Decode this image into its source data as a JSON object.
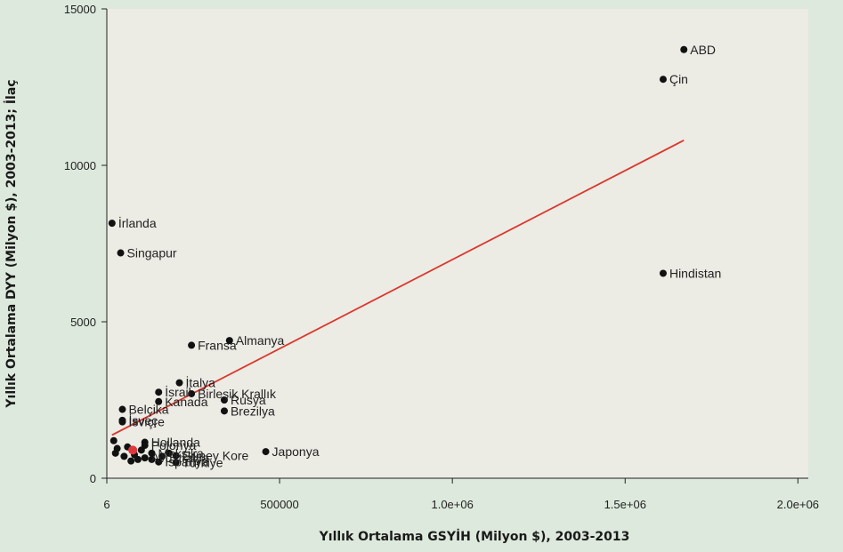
{
  "chart_data": {
    "type": "scatter",
    "xlabel": "Yıllık Ortalama GSYİH (Milyon $), 2003-2013",
    "ylabel": "Yıllık Ortalama DYY (Milyon $), 2003-2013; İlaç",
    "xlim": [
      6,
      2030000
    ],
    "ylim": [
      0,
      15000
    ],
    "x_ticks": [
      {
        "value": 6,
        "label": "6"
      },
      {
        "value": 500000,
        "label": "500000"
      },
      {
        "value": 1000000,
        "label": "1.0e+06"
      },
      {
        "value": 1500000,
        "label": "1.5e+06"
      },
      {
        "value": 2000000,
        "label": "2.0e+06"
      }
    ],
    "y_ticks": [
      {
        "value": 0,
        "label": "0"
      },
      {
        "value": 5000,
        "label": "5000"
      },
      {
        "value": 10000,
        "label": "10000"
      },
      {
        "value": 15000,
        "label": "15000"
      }
    ],
    "points": [
      {
        "label": "ABD",
        "x": 1670000,
        "y": 13700
      },
      {
        "label": "Çin",
        "x": 1610000,
        "y": 12750
      },
      {
        "label": "Hindistan",
        "x": 1610000,
        "y": 6550
      },
      {
        "label": "İrlanda",
        "x": 15000,
        "y": 8150
      },
      {
        "label": "Singapur",
        "x": 40000,
        "y": 7200
      },
      {
        "label": "Fransa",
        "x": 245000,
        "y": 4250
      },
      {
        "label": "Almanya",
        "x": 355000,
        "y": 4400
      },
      {
        "label": "İtalya",
        "x": 210000,
        "y": 3050
      },
      {
        "label": "İsrail",
        "x": 150000,
        "y": 2750
      },
      {
        "label": "Birleşik Krallık",
        "x": 245000,
        "y": 2700
      },
      {
        "label": "Kanada",
        "x": 150000,
        "y": 2450
      },
      {
        "label": "Rusya",
        "x": 340000,
        "y": 2500
      },
      {
        "label": "Brezilya",
        "x": 340000,
        "y": 2150
      },
      {
        "label": "Belçika",
        "x": 45000,
        "y": 2200
      },
      {
        "label": "İsveç",
        "x": 45000,
        "y": 1850
      },
      {
        "label": "İsviçre",
        "x": 45000,
        "y": 1800
      },
      {
        "label": "Hollanda",
        "x": 110000,
        "y": 1150
      },
      {
        "label": "Polonya",
        "x": 110000,
        "y": 1050
      },
      {
        "label": "Japonya",
        "x": 460000,
        "y": 850
      },
      {
        "label": "Meksika",
        "x": 130000,
        "y": 800
      },
      {
        "label": "Güney Kore",
        "x": 200000,
        "y": 720
      },
      {
        "label": "Avustralya",
        "x": 110000,
        "y": 650
      },
      {
        "label": "İspanya",
        "x": 150000,
        "y": 520
      },
      {
        "label": "Türkiye",
        "x": 200000,
        "y": 500
      },
      {
        "label": "",
        "x": 20000,
        "y": 1200
      },
      {
        "label": "",
        "x": 30000,
        "y": 950
      },
      {
        "label": "",
        "x": 25000,
        "y": 800
      },
      {
        "label": "",
        "x": 50000,
        "y": 700
      },
      {
        "label": "",
        "x": 60000,
        "y": 1000
      },
      {
        "label": "",
        "x": 80000,
        "y": 750
      },
      {
        "label": "",
        "x": 90000,
        "y": 600
      },
      {
        "label": "",
        "x": 70000,
        "y": 550
      },
      {
        "label": "",
        "x": 100000,
        "y": 900
      },
      {
        "label": "",
        "x": 130000,
        "y": 600
      },
      {
        "label": "",
        "x": 160000,
        "y": 700
      },
      {
        "label": "",
        "x": 180000,
        "y": 800
      }
    ],
    "highlight_point": {
      "x": 75000,
      "y": 900
    },
    "trend_line": {
      "x": [
        15000,
        1670000
      ],
      "y": [
        1380,
        10800
      ]
    },
    "grid": false,
    "colors": {
      "page_background": "#dde9dc",
      "plot_background": "#ecebe4",
      "points": "#111111",
      "trend_line": "#d9382d",
      "highlight": "#e0373a"
    }
  }
}
